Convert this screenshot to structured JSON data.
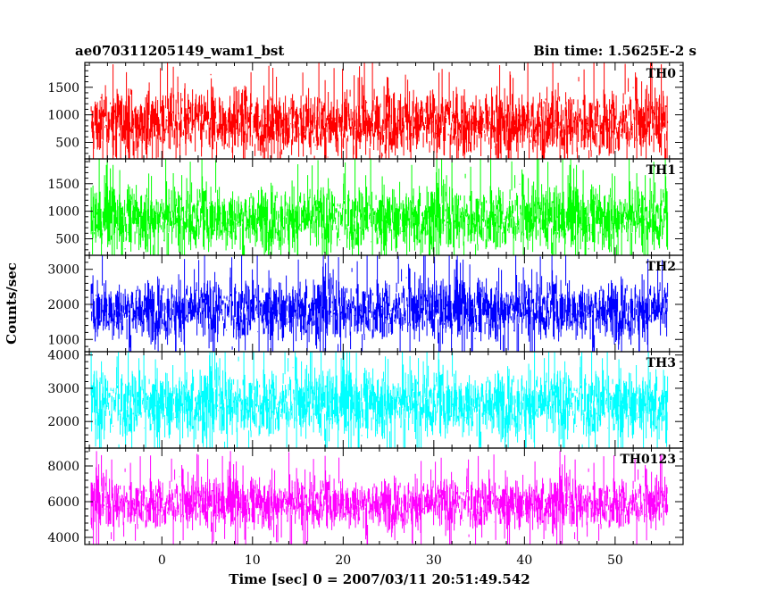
{
  "chart_data": {
    "type": "line",
    "title_left": "ae070311205149_wam1_bst",
    "title_right": "Bin time: 1.5625E-2 s",
    "xlabel": "Time [sec] 0 = 2007/03/11 20:51:49.542",
    "ylabel": "Counts/sec",
    "xlim": [
      -8.5,
      57.5
    ],
    "x_range_data": [
      -7.8,
      55.8
    ],
    "x_ticks": [
      0,
      10,
      20,
      30,
      40,
      50
    ],
    "x_tick_labels": [
      "0",
      "10",
      "20",
      "30",
      "40",
      "50"
    ],
    "grid": false,
    "panels": [
      {
        "label": "TH0",
        "color": "#ff0000",
        "ylim": [
          200,
          1950
        ],
        "ticks": [
          500,
          1000,
          1500
        ],
        "tick_labels": [
          "500",
          "1000",
          "1500"
        ],
        "typical_range": [
          250,
          1450
        ],
        "min": 200,
        "max": 1950
      },
      {
        "label": "TH1",
        "color": "#00ff00",
        "ylim": [
          200,
          1950
        ],
        "ticks": [
          500,
          1000,
          1500
        ],
        "tick_labels": [
          "500",
          "1000",
          "1500"
        ],
        "typical_range": [
          300,
          1450
        ],
        "min": 200,
        "max": 1950
      },
      {
        "label": "TH2",
        "color": "#0000ff",
        "ylim": [
          650,
          3400
        ],
        "ticks": [
          1000,
          2000,
          3000
        ],
        "tick_labels": [
          "1000",
          "2000",
          "3000"
        ],
        "typical_range": [
          1000,
          2700
        ],
        "min": 650,
        "max": 3400
      },
      {
        "label": "TH3",
        "color": "#00ffff",
        "ylim": [
          1200,
          4100
        ],
        "ticks": [
          2000,
          3000,
          4000
        ],
        "tick_labels": [
          "2000",
          "3000",
          "4000"
        ],
        "typical_range": [
          1550,
          3550
        ],
        "min": 1200,
        "max": 4100
      },
      {
        "label": "TH0123",
        "color": "#ff00ff",
        "ylim": [
          3600,
          9000
        ],
        "ticks": [
          4000,
          6000,
          8000
        ],
        "tick_labels": [
          "4000",
          "6000",
          "8000"
        ],
        "typical_range": [
          4500,
          7300
        ],
        "min": 3600,
        "max": 9000
      }
    ]
  }
}
